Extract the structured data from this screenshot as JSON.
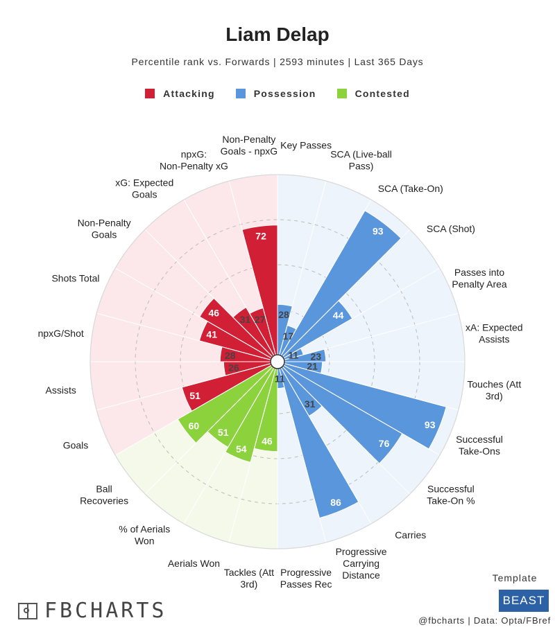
{
  "header": {
    "title": "Liam Delap",
    "subtitle": "Percentile rank vs. Forwards | 2593 minutes | Last 365 Days"
  },
  "legend": [
    {
      "label": "Attacking",
      "color": "#d11f35"
    },
    {
      "label": "Possession",
      "color": "#5a96dc"
    },
    {
      "label": "Contested",
      "color": "#8cd23c"
    }
  ],
  "chart_data": {
    "type": "polar-bar",
    "scale": [
      0,
      100
    ],
    "grid": true,
    "start_angle_deg_clockwise_from_north": 0,
    "groups": {
      "Attacking": {
        "color": "#d11f35",
        "bg": "#fce8ea"
      },
      "Possession": {
        "color": "#5a96dc",
        "bg": "#eef4fb"
      },
      "Contested": {
        "color": "#8cd23c",
        "bg": "#f5f9ea"
      }
    },
    "categories": [
      {
        "label": "Key Passes",
        "value": 28,
        "group": "Possession"
      },
      {
        "label": "SCA (Live-ball Pass)",
        "value": 17,
        "group": "Possession"
      },
      {
        "label": "SCA (Take-On)",
        "value": 93,
        "group": "Possession"
      },
      {
        "label": "SCA (Shot)",
        "value": 44,
        "group": "Possession"
      },
      {
        "label": "Passes into Penalty Area",
        "value": 11,
        "group": "Possession"
      },
      {
        "label": "xA: Expected Assists",
        "value": 23,
        "group": "Possession"
      },
      {
        "label": "Touches (Att 3rd)",
        "value": 21,
        "group": "Possession"
      },
      {
        "label": "Successful Take-Ons",
        "value": 93,
        "group": "Possession"
      },
      {
        "label": "Successful Take-On %",
        "value": 76,
        "group": "Possession"
      },
      {
        "label": "Carries",
        "value": 31,
        "group": "Possession"
      },
      {
        "label": "Progressive Carrying Distance",
        "value": 86,
        "group": "Possession"
      },
      {
        "label": "Progressive Passes Rec",
        "value": 11,
        "group": "Possession"
      },
      {
        "label": "Tackles (Att 3rd)",
        "value": 46,
        "group": "Contested"
      },
      {
        "label": "Aerials Won",
        "value": 54,
        "group": "Contested"
      },
      {
        "label": "% of Aerials Won",
        "value": 51,
        "group": "Contested"
      },
      {
        "label": "Ball Recoveries",
        "value": 60,
        "group": "Contested"
      },
      {
        "label": "Goals",
        "value": 51,
        "group": "Attacking"
      },
      {
        "label": "Assists",
        "value": 26,
        "group": "Attacking"
      },
      {
        "label": "npxG/Shot",
        "value": 28,
        "group": "Attacking"
      },
      {
        "label": "Shots Total",
        "value": 41,
        "group": "Attacking"
      },
      {
        "label": "Non-Penalty Goals",
        "value": 46,
        "group": "Attacking"
      },
      {
        "label": "xG: Expected Goals",
        "value": 31,
        "group": "Attacking"
      },
      {
        "label": "npxG: Non-Penalty xG",
        "value": 27,
        "group": "Attacking"
      },
      {
        "label": "Non-Penalty Goals - npxG",
        "value": 72,
        "group": "Attacking"
      }
    ]
  },
  "footer": {
    "logo_text": "FBCHARTS",
    "template_label": "Template",
    "template_name": "BEAST",
    "credit": "@fbcharts | Data: Opta/FBref"
  }
}
